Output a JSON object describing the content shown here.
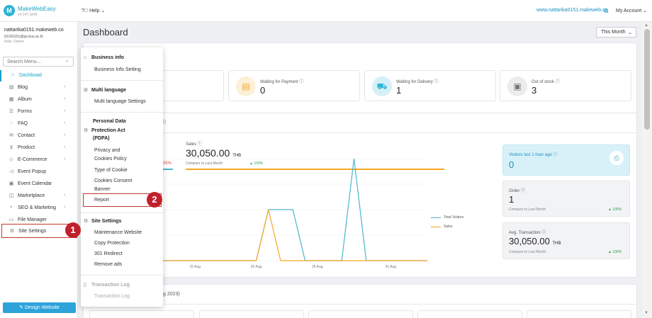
{
  "app": {
    "name": "MakeWebEasy",
    "version": "v4.147.1643"
  },
  "topbar": {
    "help_label": "Help",
    "site_link": "www.nattarika0151.makeweb.co",
    "account_label": "My Account"
  },
  "user": {
    "name": "nattarika0151.makeweb.co",
    "email": "62160151@go.buu.ac.th",
    "role": "Role: Owner"
  },
  "sidebar": {
    "search_placeholder": "Search Menu...",
    "items": [
      {
        "label": "Dashboad",
        "icon": "home-icon",
        "active": true
      },
      {
        "label": "Blog",
        "icon": "document-icon"
      },
      {
        "label": "Album",
        "icon": "image-icon"
      },
      {
        "label": "Forms",
        "icon": "list-icon"
      },
      {
        "label": "FAQ",
        "icon": "chat-icon"
      },
      {
        "label": "Contact",
        "icon": "mail-icon"
      },
      {
        "label": "Product",
        "icon": "cart-icon"
      },
      {
        "label": "E-Commerce",
        "icon": "tag-icon"
      },
      {
        "label": "Event Popup",
        "icon": "megaphone-icon"
      },
      {
        "label": "Event Calendar",
        "icon": "calendar-icon"
      },
      {
        "label": "Marketplace",
        "icon": "bag-icon"
      },
      {
        "label": "SEO & Marketing",
        "icon": "search-icon"
      },
      {
        "label": "File Manager",
        "icon": "folder-icon"
      },
      {
        "label": "Site Settings",
        "icon": "gear-icon"
      }
    ],
    "design_button": "Design Website"
  },
  "main": {
    "title": "Dashboard",
    "period": "This Month"
  },
  "stats": [
    {
      "label": "Waiting for Payment",
      "value": "0",
      "color": "#f5a623"
    },
    {
      "label": "Waiting for Delivery",
      "value": "1",
      "color": "#2db3d6"
    },
    {
      "label": "Out of stock",
      "value": "3",
      "color": "#777777"
    }
  ],
  "chart_partial": {
    "header_fragment": "I)",
    "pct_fragment": "35%",
    "footer_fragment": "g 2023)"
  },
  "sales": {
    "label": "Sales",
    "value": "30,050.00",
    "unit": "THB",
    "compare": "Compare to Last Month",
    "change": "100%"
  },
  "chart_data": {
    "type": "line",
    "x_ticks": [
      "10 Aug",
      "15 Aug",
      "20 Aug",
      "25 Aug",
      "31 Aug"
    ],
    "series": [
      {
        "name": "Total Visitors",
        "color": "#4bb5d0",
        "values": [
          0,
          0,
          0,
          0,
          1,
          0,
          0,
          0,
          0,
          0,
          0,
          0,
          0,
          0,
          0,
          1,
          1,
          1,
          0,
          0,
          0,
          0,
          2,
          0,
          0,
          0,
          0,
          0,
          0
        ]
      },
      {
        "name": "Sales",
        "color": "#f5a623",
        "values": [
          0,
          0,
          0,
          0,
          0,
          0,
          0,
          0,
          0,
          0,
          0,
          0,
          0,
          0,
          0,
          1,
          0,
          0,
          0,
          0,
          0,
          0,
          0,
          0,
          0,
          0,
          0,
          0,
          0
        ]
      }
    ]
  },
  "side_cards": {
    "visitors": {
      "title": "Visitors last 1 hour ago",
      "value": "0"
    },
    "order": {
      "title": "Order",
      "value": "1",
      "compare": "Compare to Last Month",
      "change": "100%"
    },
    "avg": {
      "title": "Avg. Transaction",
      "value": "30,050.00",
      "unit": "THB",
      "compare": "Compare to Last Month",
      "change": "100%"
    }
  },
  "dropdown": {
    "business_info": {
      "title": "Business info",
      "items": [
        "Business Info Setting"
      ]
    },
    "multi_language": {
      "title": "Multi language",
      "items": [
        "Multi language Settings"
      ]
    },
    "pdpa": {
      "title_line1": "Personal Data",
      "title_line2": "Protection Act",
      "title_line3": "(PDPA)",
      "items": [
        "Privacy and",
        "Cookies Policy",
        "Type of Cookie",
        "Cookies Consent",
        "Banner",
        "Report"
      ]
    },
    "site_settings": {
      "title": "Site Settings",
      "items": [
        "Maintenance Website",
        "Copy Protection",
        "301 Redirect",
        "Remove ads"
      ]
    },
    "transaction_log": {
      "title": "Transaction Log",
      "items": [
        "Transaction Log"
      ]
    }
  },
  "markers": [
    "1",
    "2"
  ]
}
